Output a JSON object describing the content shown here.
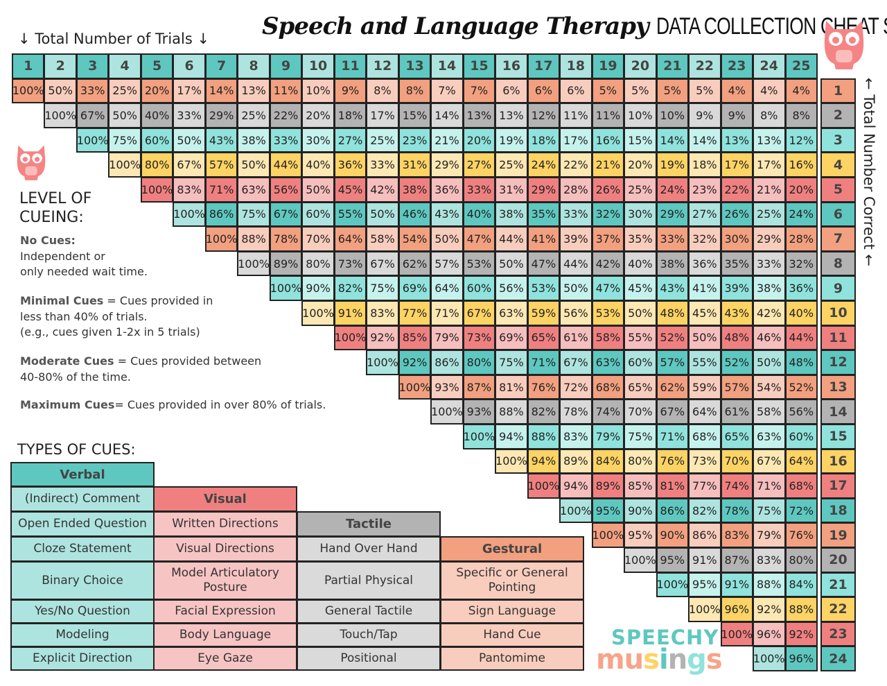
{
  "title": {
    "script": "Speech and Language Therapy",
    "caps": "DATA COLLECTION CHEAT SHEET"
  },
  "trials_label": "↓ Total Number of Trials ↓",
  "correct_label": "← Total Number Correct ←",
  "colors": {
    "header_dark": "#5ec8c0",
    "header_light": "#aee4df",
    "row_palette": [
      {
        "dark": "#f2a07f",
        "light": "#f9cdbd"
      },
      {
        "dark": "#b3b3b3",
        "light": "#d9d9d9"
      },
      {
        "dark": "#8fe3dc",
        "light": "#c6f2ee"
      },
      {
        "dark": "#fdd364",
        "light": "#fde8b3"
      },
      {
        "dark": "#f08080",
        "light": "#f7bebe"
      },
      {
        "dark": "#5ec8c0",
        "light": "#aee4df"
      }
    ]
  },
  "trials": [
    "1",
    "2",
    "3",
    "4",
    "5",
    "6",
    "7",
    "8",
    "9",
    "10",
    "11",
    "12",
    "13",
    "14",
    "15",
    "16",
    "17",
    "18",
    "19",
    "20",
    "21",
    "22",
    "23",
    "24",
    "25"
  ],
  "correct": [
    "1",
    "2",
    "3",
    "4",
    "5",
    "6",
    "7",
    "8",
    "9",
    "10",
    "11",
    "12",
    "13",
    "14",
    "15",
    "16",
    "17",
    "18",
    "19",
    "20",
    "21",
    "22",
    "23",
    "24"
  ],
  "grid": [
    [
      "100%",
      "50%",
      "33%",
      "25%",
      "20%",
      "17%",
      "14%",
      "13%",
      "11%",
      "10%",
      "9%",
      "8%",
      "8%",
      "7%",
      "7%",
      "6%",
      "6%",
      "6%",
      "5%",
      "5%",
      "5%",
      "5%",
      "4%",
      "4%",
      "4%"
    ],
    [
      "100%",
      "67%",
      "50%",
      "40%",
      "33%",
      "29%",
      "25%",
      "22%",
      "20%",
      "18%",
      "17%",
      "15%",
      "14%",
      "13%",
      "13%",
      "12%",
      "11%",
      "11%",
      "10%",
      "10%",
      "9%",
      "9%",
      "8%",
      "8%"
    ],
    [
      "100%",
      "75%",
      "60%",
      "50%",
      "43%",
      "38%",
      "33%",
      "30%",
      "27%",
      "25%",
      "23%",
      "21%",
      "20%",
      "19%",
      "18%",
      "17%",
      "16%",
      "15%",
      "14%",
      "14%",
      "13%",
      "13%",
      "12%"
    ],
    [
      "100%",
      "80%",
      "67%",
      "57%",
      "50%",
      "44%",
      "40%",
      "36%",
      "33%",
      "31%",
      "29%",
      "27%",
      "25%",
      "24%",
      "22%",
      "21%",
      "20%",
      "19%",
      "18%",
      "17%",
      "17%",
      "16%"
    ],
    [
      "100%",
      "83%",
      "71%",
      "63%",
      "56%",
      "50%",
      "45%",
      "42%",
      "38%",
      "36%",
      "33%",
      "31%",
      "29%",
      "28%",
      "26%",
      "25%",
      "24%",
      "23%",
      "22%",
      "21%",
      "20%"
    ],
    [
      "100%",
      "86%",
      "75%",
      "67%",
      "60%",
      "55%",
      "50%",
      "46%",
      "43%",
      "40%",
      "38%",
      "35%",
      "33%",
      "32%",
      "30%",
      "29%",
      "27%",
      "26%",
      "25%",
      "24%"
    ],
    [
      "100%",
      "88%",
      "78%",
      "70%",
      "64%",
      "58%",
      "54%",
      "50%",
      "47%",
      "44%",
      "41%",
      "39%",
      "37%",
      "35%",
      "33%",
      "32%",
      "30%",
      "29%",
      "28%"
    ],
    [
      "100%",
      "89%",
      "80%",
      "73%",
      "67%",
      "62%",
      "57%",
      "53%",
      "50%",
      "47%",
      "44%",
      "42%",
      "40%",
      "38%",
      "36%",
      "35%",
      "33%",
      "32%"
    ],
    [
      "100%",
      "90%",
      "82%",
      "75%",
      "69%",
      "64%",
      "60%",
      "56%",
      "53%",
      "50%",
      "47%",
      "45%",
      "43%",
      "41%",
      "39%",
      "38%",
      "36%"
    ],
    [
      "100%",
      "91%",
      "83%",
      "77%",
      "71%",
      "67%",
      "63%",
      "59%",
      "56%",
      "53%",
      "50%",
      "48%",
      "45%",
      "43%",
      "42%",
      "40%"
    ],
    [
      "100%",
      "92%",
      "85%",
      "79%",
      "73%",
      "69%",
      "65%",
      "61%",
      "58%",
      "55%",
      "52%",
      "50%",
      "48%",
      "46%",
      "44%"
    ],
    [
      "100%",
      "92%",
      "86%",
      "80%",
      "75%",
      "71%",
      "67%",
      "63%",
      "60%",
      "57%",
      "55%",
      "52%",
      "50%",
      "48%"
    ],
    [
      "100%",
      "93%",
      "87%",
      "81%",
      "76%",
      "72%",
      "68%",
      "65%",
      "62%",
      "59%",
      "57%",
      "54%",
      "52%"
    ],
    [
      "100%",
      "93%",
      "88%",
      "82%",
      "78%",
      "74%",
      "70%",
      "67%",
      "64%",
      "61%",
      "58%",
      "56%"
    ],
    [
      "100%",
      "94%",
      "88%",
      "83%",
      "79%",
      "75%",
      "71%",
      "68%",
      "65%",
      "63%",
      "60%"
    ],
    [
      "100%",
      "94%",
      "89%",
      "84%",
      "80%",
      "76%",
      "73%",
      "70%",
      "67%",
      "64%"
    ],
    [
      "100%",
      "94%",
      "89%",
      "85%",
      "81%",
      "77%",
      "74%",
      "71%",
      "68%"
    ],
    [
      "100%",
      "95%",
      "90%",
      "86%",
      "82%",
      "78%",
      "75%",
      "72%"
    ],
    [
      "100%",
      "95%",
      "90%",
      "86%",
      "83%",
      "79%",
      "76%"
    ],
    [
      "100%",
      "95%",
      "91%",
      "87%",
      "83%",
      "80%"
    ],
    [
      "100%",
      "95%",
      "91%",
      "88%",
      "84%"
    ],
    [
      "100%",
      "96%",
      "92%",
      "88%"
    ],
    [
      "100%",
      "96%",
      "92%"
    ],
    [
      "100%",
      "96%"
    ]
  ],
  "level": {
    "heading1": "LEVEL OF",
    "heading2": "CUEING:",
    "no_cues_term": "No Cues:",
    "no_cues_l1": "Independent or",
    "no_cues_l2": "only needed wait time.",
    "minimal_term": "Minimal Cues",
    "minimal_l1": " = Cues provided in",
    "minimal_l2": "less than 40% of trials.",
    "minimal_l3": "(e.g., cues given 1-2x in 5 trials)",
    "moderate_term": "Moderate Cues",
    "moderate_l1": " = Cues provided between",
    "moderate_l2": "40-80% of the time.",
    "maximum_term": "Maximum Cues",
    "maximum_l1": "= Cues provided in over 80% of trials."
  },
  "types_heading": "TYPES OF CUES:",
  "cues": [
    {
      "name": "Verbal",
      "dark": "#5ec8c0",
      "light": "#aee4df",
      "items": [
        "(Indirect) Comment",
        "Open Ended Question",
        "Cloze Statement",
        "Binary Choice",
        "Yes/No Question",
        "Modeling",
        "Explicit Direction"
      ]
    },
    {
      "name": "Visual",
      "dark": "#f08080",
      "light": "#f7c4c4",
      "items": [
        "Written Directions",
        "Visual Directions",
        "Model Articulatory Posture",
        "Facial Expression",
        "Body Language",
        "Eye Gaze"
      ]
    },
    {
      "name": "Tactile",
      "dark": "#b3b3b3",
      "light": "#dadada",
      "items": [
        "Hand Over Hand",
        "Partial Physical",
        "General Tactile",
        "Touch/Tap",
        "Positional"
      ]
    },
    {
      "name": "Gestural",
      "dark": "#f2a07f",
      "light": "#f9cdbd",
      "items": [
        "Specific or General Pointing",
        "Sign Language",
        "Hand Cue",
        "Pantomime"
      ]
    }
  ],
  "logo": {
    "line1": "SPEECHY",
    "line2": [
      "mu",
      "s",
      "i",
      "n",
      "g",
      "s"
    ],
    "line2_colors": [
      "#f7a48a",
      "#fdd364",
      "#5ec8c0",
      "#b3b3b3",
      "#8fe3dc",
      "#f7a48a"
    ]
  }
}
